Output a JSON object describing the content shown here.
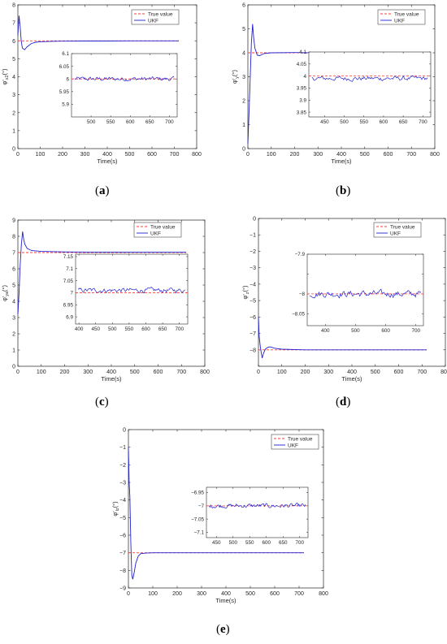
{
  "colors": {
    "true_value": "#ff3b3b",
    "ukf": "#2020d0",
    "axis": "#262626",
    "bg": "#ffffff"
  },
  "chart_data": [
    {
      "type": "line",
      "id": "a",
      "caption": "a",
      "xlabel": "Time(s)",
      "ylabel": "φ'x2(°)",
      "ylabel_main": "φ'",
      "ylabel_sub": "x2",
      "ylabel_unit": "(°)",
      "xlim": [
        0,
        800
      ],
      "ylim": [
        0,
        8
      ],
      "xticks": [
        0,
        100,
        200,
        300,
        400,
        500,
        600,
        700,
        800
      ],
      "yticks": [
        0,
        1,
        2,
        3,
        4,
        5,
        6,
        7,
        8
      ],
      "true_value": 6,
      "series": [
        {
          "name": "True value",
          "style": "dashed",
          "points": [
            [
              0,
              6
            ],
            [
              720,
              6
            ]
          ]
        },
        {
          "name": "UKF",
          "style": "solid",
          "points": [
            [
              0,
              6.3
            ],
            [
              5,
              7.4
            ],
            [
              10,
              6.8
            ],
            [
              15,
              6.0
            ],
            [
              20,
              5.6
            ],
            [
              30,
              5.5
            ],
            [
              40,
              5.65
            ],
            [
              60,
              5.85
            ],
            [
              80,
              5.92
            ],
            [
              100,
              5.95
            ],
            [
              150,
              5.97
            ],
            [
              200,
              5.98
            ],
            [
              300,
              5.99
            ],
            [
              400,
              5.99
            ],
            [
              500,
              6.0
            ],
            [
              720,
              6.0
            ]
          ]
        }
      ],
      "inset": {
        "xlim": [
          450,
          720
        ],
        "ylim": [
          5.85,
          6.1
        ],
        "xticks": [
          500,
          550,
          600,
          650,
          700
        ],
        "yticks": [
          5.9,
          5.95,
          6,
          6.05,
          6.1
        ],
        "ytick_labels": [
          "5.9",
          "5.95",
          "6",
          "6.05",
          "6.1"
        ],
        "center": 6.0,
        "noise": 0.006
      }
    },
    {
      "type": "line",
      "id": "b",
      "caption": "b",
      "xlabel": "Time(s)",
      "ylabel": "φ'y(°)",
      "ylabel_main": "φ'",
      "ylabel_sub": "y",
      "ylabel_unit": "(°)",
      "xlim": [
        0,
        800
      ],
      "ylim": [
        0,
        6
      ],
      "xticks": [
        0,
        100,
        200,
        300,
        400,
        500,
        600,
        700,
        800
      ],
      "yticks": [
        0,
        1,
        2,
        3,
        4,
        5,
        6
      ],
      "true_value": 4,
      "series": [
        {
          "name": "True value",
          "style": "dashed",
          "points": [
            [
              0,
              4
            ],
            [
              720,
              4
            ]
          ]
        },
        {
          "name": "UKF",
          "style": "solid",
          "points": [
            [
              0,
              0.2
            ],
            [
              5,
              1.5
            ],
            [
              10,
              3.0
            ],
            [
              15,
              4.4
            ],
            [
              20,
              5.2
            ],
            [
              25,
              4.6
            ],
            [
              30,
              4.2
            ],
            [
              40,
              3.9
            ],
            [
              50,
              3.88
            ],
            [
              70,
              3.97
            ],
            [
              100,
              4.0
            ],
            [
              200,
              4.01
            ],
            [
              300,
              4.0
            ],
            [
              500,
              4.0
            ],
            [
              720,
              4.0
            ]
          ]
        }
      ],
      "inset": {
        "xlim": [
          410,
          720
        ],
        "ylim": [
          3.83,
          4.1
        ],
        "xticks": [
          450,
          500,
          550,
          600,
          650,
          700
        ],
        "yticks": [
          3.85,
          3.9,
          3.95,
          4,
          4.05,
          4.1
        ],
        "ytick_labels": [
          "3.85",
          "3.9",
          "3.95",
          "4",
          "4.05",
          "4.1"
        ],
        "center": 3.99,
        "noise": 0.007
      }
    },
    {
      "type": "line",
      "id": "c",
      "caption": "c",
      "xlabel": "Time(s)",
      "ylabel": "φ'ya(°)",
      "ylabel_main": "φ'",
      "ylabel_sub": "ya",
      "ylabel_unit": "(°)",
      "xlim": [
        0,
        800
      ],
      "ylim": [
        0,
        9
      ],
      "xticks": [
        0,
        100,
        200,
        300,
        400,
        500,
        600,
        700,
        800
      ],
      "yticks": [
        0,
        1,
        2,
        3,
        4,
        5,
        6,
        7,
        8,
        9
      ],
      "true_value": 7,
      "series": [
        {
          "name": "True value",
          "style": "dashed",
          "points": [
            [
              0,
              7
            ],
            [
              720,
              7
            ]
          ]
        },
        {
          "name": "UKF",
          "style": "solid",
          "points": [
            [
              0,
              3.2
            ],
            [
              5,
              4.5
            ],
            [
              10,
              6.3
            ],
            [
              15,
              7.5
            ],
            [
              20,
              8.3
            ],
            [
              25,
              7.8
            ],
            [
              30,
              7.5
            ],
            [
              40,
              7.25
            ],
            [
              60,
              7.12
            ],
            [
              100,
              7.07
            ],
            [
              200,
              7.04
            ],
            [
              300,
              7.03
            ],
            [
              500,
              7.02
            ],
            [
              720,
              7.02
            ]
          ]
        }
      ],
      "inset": {
        "xlim": [
          390,
          725
        ],
        "ylim": [
          6.87,
          7.16
        ],
        "xticks": [
          400,
          450,
          500,
          550,
          600,
          650,
          700
        ],
        "yticks": [
          6.9,
          6.95,
          7,
          7.05,
          7.1,
          7.15
        ],
        "ytick_labels": [
          "6.9",
          "6.95",
          "7",
          "7.05",
          "7.1",
          "7.15"
        ],
        "center": 7.01,
        "noise": 0.007
      }
    },
    {
      "type": "line",
      "id": "d",
      "caption": "d",
      "xlabel": "Time(s)",
      "ylabel": "φ'z(°)",
      "ylabel_main": "φ'",
      "ylabel_sub": "z",
      "ylabel_unit": "(°)",
      "xlim": [
        0,
        800
      ],
      "ylim": [
        -9,
        0
      ],
      "xticks": [
        0,
        100,
        200,
        300,
        400,
        500,
        600,
        700,
        800
      ],
      "yticks": [
        -9,
        -8,
        -7,
        -6,
        -5,
        -4,
        -3,
        -2,
        -1,
        0
      ],
      "ytick_labels": [
        "",
        "−8",
        "−7",
        "−6",
        "−5",
        "−4",
        "−3",
        "−2",
        "−1",
        "0"
      ],
      "true_value": -8,
      "series": [
        {
          "name": "True value",
          "style": "dashed",
          "points": [
            [
              0,
              -8
            ],
            [
              720,
              -8
            ]
          ]
        },
        {
          "name": "UKF",
          "style": "solid",
          "points": [
            [
              0,
              -6.0
            ],
            [
              3,
              -7.2
            ],
            [
              8,
              -7.8
            ],
            [
              12,
              -8.2
            ],
            [
              16,
              -8.5
            ],
            [
              22,
              -8.2
            ],
            [
              30,
              -7.95
            ],
            [
              40,
              -7.85
            ],
            [
              50,
              -7.82
            ],
            [
              70,
              -7.9
            ],
            [
              100,
              -7.96
            ],
            [
              200,
              -8.0
            ],
            [
              400,
              -8.0
            ],
            [
              720,
              -8.0
            ]
          ]
        }
      ],
      "inset": {
        "xlim": [
          340,
          725
        ],
        "ylim": [
          -8.08,
          -7.9
        ],
        "xticks": [
          400,
          500,
          600,
          700
        ],
        "yticks": [
          -8.05,
          -8,
          -7.95,
          -7.9
        ],
        "ytick_labels": [
          "−8.05",
          "−8",
          "",
          "−7.9"
        ],
        "center": -8.0,
        "noise": 0.006
      }
    },
    {
      "type": "line",
      "id": "e",
      "caption": "e",
      "xlabel": "Time(s)",
      "ylabel": "φ'lz(°)",
      "ylabel_main": "φ'",
      "ylabel_sub": "lz",
      "ylabel_unit": "(°)",
      "xlim": [
        0,
        800
      ],
      "ylim": [
        -9,
        0
      ],
      "xticks": [
        0,
        100,
        200,
        300,
        400,
        500,
        600,
        700,
        800
      ],
      "yticks": [
        -9,
        -8,
        -7,
        -6,
        -5,
        -4,
        -3,
        -2,
        -1,
        0
      ],
      "ytick_labels": [
        "−9",
        "−8",
        "−7",
        "−6",
        "−5",
        "−4",
        "−3",
        "−2",
        "−1",
        "0"
      ],
      "true_value": -7,
      "series": [
        {
          "name": "True value",
          "style": "dashed",
          "points": [
            [
              0,
              -7
            ],
            [
              720,
              -7
            ]
          ]
        },
        {
          "name": "UKF",
          "style": "solid",
          "points": [
            [
              0,
              -1.0
            ],
            [
              3,
              -3.0
            ],
            [
              6,
              -3.8
            ],
            [
              10,
              -6.5
            ],
            [
              14,
              -8.3
            ],
            [
              18,
              -8.5
            ],
            [
              24,
              -8.1
            ],
            [
              30,
              -7.6
            ],
            [
              40,
              -7.2
            ],
            [
              50,
              -7.05
            ],
            [
              70,
              -7.02
            ],
            [
              100,
              -7.0
            ],
            [
              300,
              -7.0
            ],
            [
              720,
              -7.0
            ]
          ]
        }
      ],
      "inset": {
        "xlim": [
          420,
          725
        ],
        "ylim": [
          -7.12,
          -6.93
        ],
        "xticks": [
          450,
          500,
          550,
          600,
          650,
          700
        ],
        "yticks": [
          -7.1,
          -7.05,
          -7,
          -6.95
        ],
        "ytick_labels": [
          "−7.1",
          "−7.05",
          "−7",
          "−6.95"
        ],
        "center": -7.0,
        "noise": 0.006
      }
    }
  ]
}
